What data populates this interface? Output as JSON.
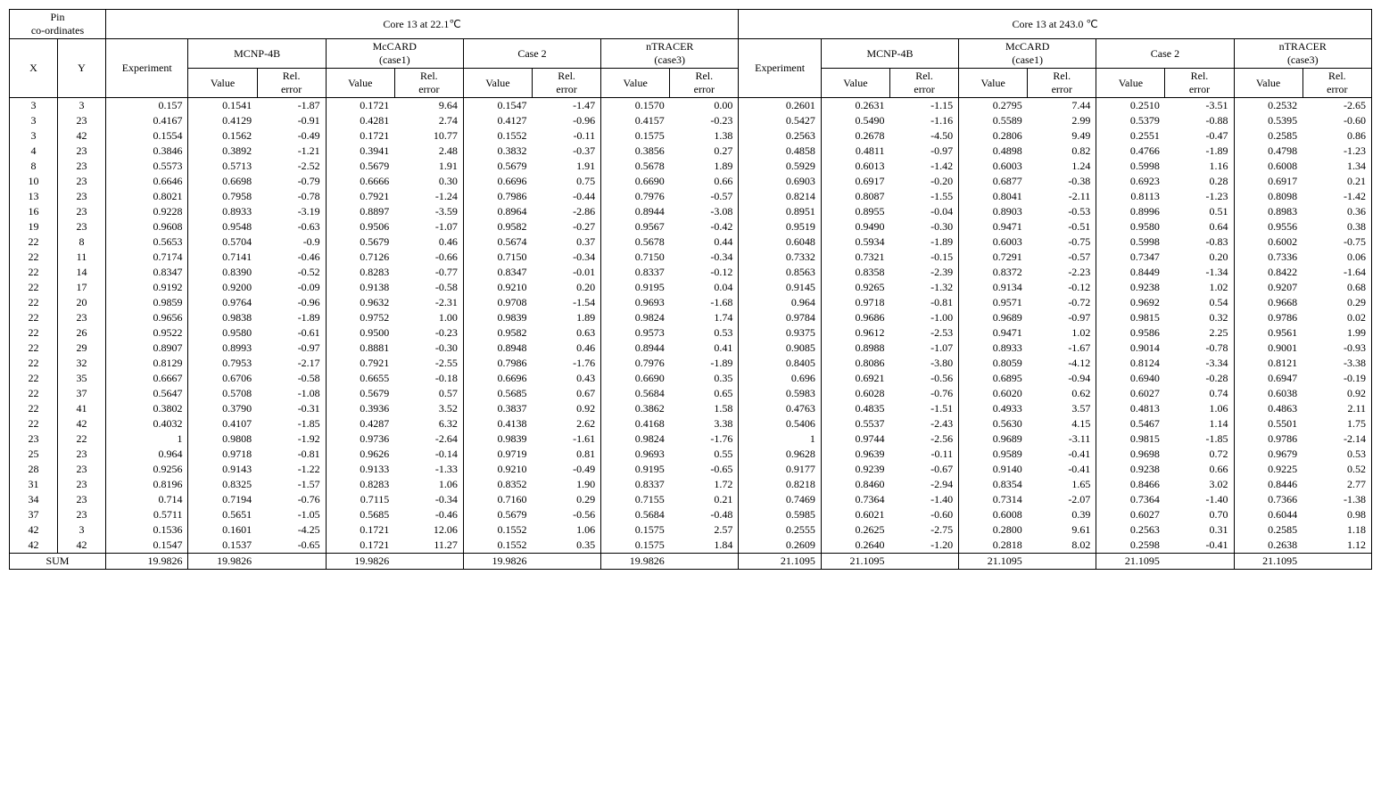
{
  "header": {
    "pin": "Pin\nco-ordinates",
    "x": "X",
    "y": "Y",
    "core1": "Core 13 at 22.1℃",
    "core2": "Core 13 at 243.0 ℃",
    "experiment": "Experiment",
    "mcnp": "MCNP-4B",
    "mccard": "McCARD\n(case1)",
    "case2": "Case 2",
    "ntracer": "nTRACER\n(case3)",
    "value": "Value",
    "rel": "Rel.\nerror",
    "sum": "SUM"
  },
  "style": {
    "font_family": "Times New Roman, serif",
    "font_size_pt": 10,
    "border_color": "#000000",
    "background_color": "#ffffff",
    "text_color": "#000000",
    "col_widths_pct": [
      3.5,
      3.5,
      6,
      5,
      5,
      5,
      5,
      5,
      5,
      5,
      5,
      6,
      5,
      5,
      5,
      5,
      5,
      5,
      5,
      5
    ]
  },
  "rows": [
    {
      "x": "3",
      "y": "3",
      "c1": [
        "0.157",
        "0.1541",
        "-1.87",
        "0.1721",
        "9.64",
        "0.1547",
        "-1.47",
        "0.1570",
        "0.00"
      ],
      "c2": [
        "0.2601",
        "0.2631",
        "-1.15",
        "0.2795",
        "7.44",
        "0.2510",
        "-3.51",
        "0.2532",
        "-2.65"
      ]
    },
    {
      "x": "3",
      "y": "23",
      "c1": [
        "0.4167",
        "0.4129",
        "-0.91",
        "0.4281",
        "2.74",
        "0.4127",
        "-0.96",
        "0.4157",
        "-0.23"
      ],
      "c2": [
        "0.5427",
        "0.5490",
        "-1.16",
        "0.5589",
        "2.99",
        "0.5379",
        "-0.88",
        "0.5395",
        "-0.60"
      ]
    },
    {
      "x": "3",
      "y": "42",
      "c1": [
        "0.1554",
        "0.1562",
        "-0.49",
        "0.1721",
        "10.77",
        "0.1552",
        "-0.11",
        "0.1575",
        "1.38"
      ],
      "c2": [
        "0.2563",
        "0.2678",
        "-4.50",
        "0.2806",
        "9.49",
        "0.2551",
        "-0.47",
        "0.2585",
        "0.86"
      ]
    },
    {
      "x": "4",
      "y": "23",
      "c1": [
        "0.3846",
        "0.3892",
        "-1.21",
        "0.3941",
        "2.48",
        "0.3832",
        "-0.37",
        "0.3856",
        "0.27"
      ],
      "c2": [
        "0.4858",
        "0.4811",
        "-0.97",
        "0.4898",
        "0.82",
        "0.4766",
        "-1.89",
        "0.4798",
        "-1.23"
      ]
    },
    {
      "x": "8",
      "y": "23",
      "c1": [
        "0.5573",
        "0.5713",
        "-2.52",
        "0.5679",
        "1.91",
        "0.5679",
        "1.91",
        "0.5678",
        "1.89"
      ],
      "c2": [
        "0.5929",
        "0.6013",
        "-1.42",
        "0.6003",
        "1.24",
        "0.5998",
        "1.16",
        "0.6008",
        "1.34"
      ]
    },
    {
      "x": "10",
      "y": "23",
      "c1": [
        "0.6646",
        "0.6698",
        "-0.79",
        "0.6666",
        "0.30",
        "0.6696",
        "0.75",
        "0.6690",
        "0.66"
      ],
      "c2": [
        "0.6903",
        "0.6917",
        "-0.20",
        "0.6877",
        "-0.38",
        "0.6923",
        "0.28",
        "0.6917",
        "0.21"
      ]
    },
    {
      "x": "13",
      "y": "23",
      "c1": [
        "0.8021",
        "0.7958",
        "-0.78",
        "0.7921",
        "-1.24",
        "0.7986",
        "-0.44",
        "0.7976",
        "-0.57"
      ],
      "c2": [
        "0.8214",
        "0.8087",
        "-1.55",
        "0.8041",
        "-2.11",
        "0.8113",
        "-1.23",
        "0.8098",
        "-1.42"
      ]
    },
    {
      "x": "16",
      "y": "23",
      "c1": [
        "0.9228",
        "0.8933",
        "-3.19",
        "0.8897",
        "-3.59",
        "0.8964",
        "-2.86",
        "0.8944",
        "-3.08"
      ],
      "c2": [
        "0.8951",
        "0.8955",
        "-0.04",
        "0.8903",
        "-0.53",
        "0.8996",
        "0.51",
        "0.8983",
        "0.36"
      ]
    },
    {
      "x": "19",
      "y": "23",
      "c1": [
        "0.9608",
        "0.9548",
        "-0.63",
        "0.9506",
        "-1.07",
        "0.9582",
        "-0.27",
        "0.9567",
        "-0.42"
      ],
      "c2": [
        "0.9519",
        "0.9490",
        "-0.30",
        "0.9471",
        "-0.51",
        "0.9580",
        "0.64",
        "0.9556",
        "0.38"
      ]
    },
    {
      "x": "22",
      "y": "8",
      "c1": [
        "0.5653",
        "0.5704",
        "-0.9",
        "0.5679",
        "0.46",
        "0.5674",
        "0.37",
        "0.5678",
        "0.44"
      ],
      "c2": [
        "0.6048",
        "0.5934",
        "-1.89",
        "0.6003",
        "-0.75",
        "0.5998",
        "-0.83",
        "0.6002",
        "-0.75"
      ]
    },
    {
      "x": "22",
      "y": "11",
      "c1": [
        "0.7174",
        "0.7141",
        "-0.46",
        "0.7126",
        "-0.66",
        "0.7150",
        "-0.34",
        "0.7150",
        "-0.34"
      ],
      "c2": [
        "0.7332",
        "0.7321",
        "-0.15",
        "0.7291",
        "-0.57",
        "0.7347",
        "0.20",
        "0.7336",
        "0.06"
      ]
    },
    {
      "x": "22",
      "y": "14",
      "c1": [
        "0.8347",
        "0.8390",
        "-0.52",
        "0.8283",
        "-0.77",
        "0.8347",
        "-0.01",
        "0.8337",
        "-0.12"
      ],
      "c2": [
        "0.8563",
        "0.8358",
        "-2.39",
        "0.8372",
        "-2.23",
        "0.8449",
        "-1.34",
        "0.8422",
        "-1.64"
      ]
    },
    {
      "x": "22",
      "y": "17",
      "c1": [
        "0.9192",
        "0.9200",
        "-0.09",
        "0.9138",
        "-0.58",
        "0.9210",
        "0.20",
        "0.9195",
        "0.04"
      ],
      "c2": [
        "0.9145",
        "0.9265",
        "-1.32",
        "0.9134",
        "-0.12",
        "0.9238",
        "1.02",
        "0.9207",
        "0.68"
      ]
    },
    {
      "x": "22",
      "y": "20",
      "c1": [
        "0.9859",
        "0.9764",
        "-0.96",
        "0.9632",
        "-2.31",
        "0.9708",
        "-1.54",
        "0.9693",
        "-1.68"
      ],
      "c2": [
        "0.964",
        "0.9718",
        "-0.81",
        "0.9571",
        "-0.72",
        "0.9692",
        "0.54",
        "0.9668",
        "0.29"
      ]
    },
    {
      "x": "22",
      "y": "23",
      "c1": [
        "0.9656",
        "0.9838",
        "-1.89",
        "0.9752",
        "1.00",
        "0.9839",
        "1.89",
        "0.9824",
        "1.74"
      ],
      "c2": [
        "0.9784",
        "0.9686",
        "-1.00",
        "0.9689",
        "-0.97",
        "0.9815",
        "0.32",
        "0.9786",
        "0.02"
      ]
    },
    {
      "x": "22",
      "y": "26",
      "c1": [
        "0.9522",
        "0.9580",
        "-0.61",
        "0.9500",
        "-0.23",
        "0.9582",
        "0.63",
        "0.9573",
        "0.53"
      ],
      "c2": [
        "0.9375",
        "0.9612",
        "-2.53",
        "0.9471",
        "1.02",
        "0.9586",
        "2.25",
        "0.9561",
        "1.99"
      ]
    },
    {
      "x": "22",
      "y": "29",
      "c1": [
        "0.8907",
        "0.8993",
        "-0.97",
        "0.8881",
        "-0.30",
        "0.8948",
        "0.46",
        "0.8944",
        "0.41"
      ],
      "c2": [
        "0.9085",
        "0.8988",
        "-1.07",
        "0.8933",
        "-1.67",
        "0.9014",
        "-0.78",
        "0.9001",
        "-0.93"
      ]
    },
    {
      "x": "22",
      "y": "32",
      "c1": [
        "0.8129",
        "0.7953",
        "-2.17",
        "0.7921",
        "-2.55",
        "0.7986",
        "-1.76",
        "0.7976",
        "-1.89"
      ],
      "c2": [
        "0.8405",
        "0.8086",
        "-3.80",
        "0.8059",
        "-4.12",
        "0.8124",
        "-3.34",
        "0.8121",
        "-3.38"
      ]
    },
    {
      "x": "22",
      "y": "35",
      "c1": [
        "0.6667",
        "0.6706",
        "-0.58",
        "0.6655",
        "-0.18",
        "0.6696",
        "0.43",
        "0.6690",
        "0.35"
      ],
      "c2": [
        "0.696",
        "0.6921",
        "-0.56",
        "0.6895",
        "-0.94",
        "0.6940",
        "-0.28",
        "0.6947",
        "-0.19"
      ]
    },
    {
      "x": "22",
      "y": "37",
      "c1": [
        "0.5647",
        "0.5708",
        "-1.08",
        "0.5679",
        "0.57",
        "0.5685",
        "0.67",
        "0.5684",
        "0.65"
      ],
      "c2": [
        "0.5983",
        "0.6028",
        "-0.76",
        "0.6020",
        "0.62",
        "0.6027",
        "0.74",
        "0.6038",
        "0.92"
      ]
    },
    {
      "x": "22",
      "y": "41",
      "c1": [
        "0.3802",
        "0.3790",
        "-0.31",
        "0.3936",
        "3.52",
        "0.3837",
        "0.92",
        "0.3862",
        "1.58"
      ],
      "c2": [
        "0.4763",
        "0.4835",
        "-1.51",
        "0.4933",
        "3.57",
        "0.4813",
        "1.06",
        "0.4863",
        "2.11"
      ]
    },
    {
      "x": "22",
      "y": "42",
      "c1": [
        "0.4032",
        "0.4107",
        "-1.85",
        "0.4287",
        "6.32",
        "0.4138",
        "2.62",
        "0.4168",
        "3.38"
      ],
      "c2": [
        "0.5406",
        "0.5537",
        "-2.43",
        "0.5630",
        "4.15",
        "0.5467",
        "1.14",
        "0.5501",
        "1.75"
      ]
    },
    {
      "x": "23",
      "y": "22",
      "c1": [
        "1",
        "0.9808",
        "-1.92",
        "0.9736",
        "-2.64",
        "0.9839",
        "-1.61",
        "0.9824",
        "-1.76"
      ],
      "c2": [
        "1",
        "0.9744",
        "-2.56",
        "0.9689",
        "-3.11",
        "0.9815",
        "-1.85",
        "0.9786",
        "-2.14"
      ]
    },
    {
      "x": "25",
      "y": "23",
      "c1": [
        "0.964",
        "0.9718",
        "-0.81",
        "0.9626",
        "-0.14",
        "0.9719",
        "0.81",
        "0.9693",
        "0.55"
      ],
      "c2": [
        "0.9628",
        "0.9639",
        "-0.11",
        "0.9589",
        "-0.41",
        "0.9698",
        "0.72",
        "0.9679",
        "0.53"
      ]
    },
    {
      "x": "28",
      "y": "23",
      "c1": [
        "0.9256",
        "0.9143",
        "-1.22",
        "0.9133",
        "-1.33",
        "0.9210",
        "-0.49",
        "0.9195",
        "-0.65"
      ],
      "c2": [
        "0.9177",
        "0.9239",
        "-0.67",
        "0.9140",
        "-0.41",
        "0.9238",
        "0.66",
        "0.9225",
        "0.52"
      ]
    },
    {
      "x": "31",
      "y": "23",
      "c1": [
        "0.8196",
        "0.8325",
        "-1.57",
        "0.8283",
        "1.06",
        "0.8352",
        "1.90",
        "0.8337",
        "1.72"
      ],
      "c2": [
        "0.8218",
        "0.8460",
        "-2.94",
        "0.8354",
        "1.65",
        "0.8466",
        "3.02",
        "0.8446",
        "2.77"
      ]
    },
    {
      "x": "34",
      "y": "23",
      "c1": [
        "0.714",
        "0.7194",
        "-0.76",
        "0.7115",
        "-0.34",
        "0.7160",
        "0.29",
        "0.7155",
        "0.21"
      ],
      "c2": [
        "0.7469",
        "0.7364",
        "-1.40",
        "0.7314",
        "-2.07",
        "0.7364",
        "-1.40",
        "0.7366",
        "-1.38"
      ]
    },
    {
      "x": "37",
      "y": "23",
      "c1": [
        "0.5711",
        "0.5651",
        "-1.05",
        "0.5685",
        "-0.46",
        "0.5679",
        "-0.56",
        "0.5684",
        "-0.48"
      ],
      "c2": [
        "0.5985",
        "0.6021",
        "-0.60",
        "0.6008",
        "0.39",
        "0.6027",
        "0.70",
        "0.6044",
        "0.98"
      ]
    },
    {
      "x": "42",
      "y": "3",
      "c1": [
        "0.1536",
        "0.1601",
        "-4.25",
        "0.1721",
        "12.06",
        "0.1552",
        "1.06",
        "0.1575",
        "2.57"
      ],
      "c2": [
        "0.2555",
        "0.2625",
        "-2.75",
        "0.2800",
        "9.61",
        "0.2563",
        "0.31",
        "0.2585",
        "1.18"
      ]
    },
    {
      "x": "42",
      "y": "42",
      "c1": [
        "0.1547",
        "0.1537",
        "-0.65",
        "0.1721",
        "11.27",
        "0.1552",
        "0.35",
        "0.1575",
        "1.84"
      ],
      "c2": [
        "0.2609",
        "0.2640",
        "-1.20",
        "0.2818",
        "8.02",
        "0.2598",
        "-0.41",
        "0.2638",
        "1.12"
      ]
    }
  ],
  "sum": {
    "c1": [
      "19.9826",
      "19.9826",
      "",
      "19.9826",
      "",
      "19.9826",
      "",
      "19.9826",
      ""
    ],
    "c2": [
      "21.1095",
      "21.1095",
      "",
      "21.1095",
      "",
      "21.1095",
      "",
      "21.1095",
      ""
    ]
  }
}
